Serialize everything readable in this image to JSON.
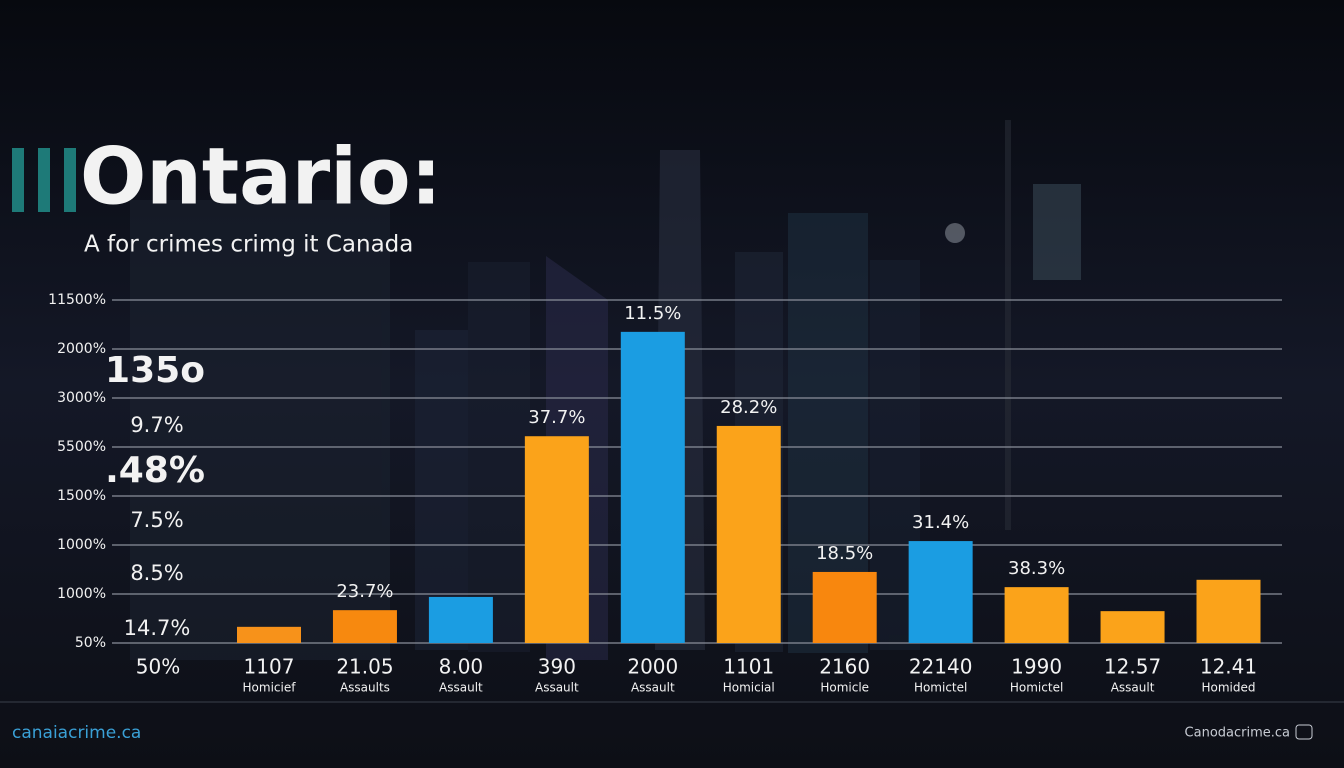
{
  "chart_data": {
    "type": "bar",
    "title": "Ontario:",
    "subtitle": "A for crimes crimg it Canada",
    "categories": [
      "1107",
      "21.05",
      "8.00",
      "390",
      "2000",
      "1101",
      "2160",
      "22140",
      "1990",
      "12.57",
      "12.41"
    ],
    "category_sublabels": [
      "Homicief",
      "Assaults",
      "Assault",
      "Assault",
      "Assault",
      "Homicial",
      "Homicle",
      "Homictel",
      "Homictel",
      "Assault",
      "Homided"
    ],
    "values": [
      0.33,
      0.67,
      0.94,
      4.22,
      6.35,
      4.43,
      1.45,
      2.08,
      1.14,
      0.65,
      1.29
    ],
    "colors": [
      "#f7921a",
      "#f7890f",
      "#1b9de2",
      "#fba31a",
      "#1b9de2",
      "#fba31a",
      "#f8870e",
      "#1b9de2",
      "#fba31a",
      "#fba31a",
      "#fba31a"
    ],
    "bar_labels": [
      null,
      "23.7%",
      null,
      "37.7%",
      "11.5%",
      "28.2%",
      "18.5%",
      "31.4%",
      "38.3%",
      null,
      null
    ],
    "ylim": [
      0,
      7
    ],
    "yticks": [
      {
        "value": 0,
        "label": "50%"
      },
      {
        "value": 1,
        "label": "1000%"
      },
      {
        "value": 2,
        "label": "1000%"
      },
      {
        "value": 3,
        "label": "1500%"
      },
      {
        "value": 4,
        "label": "5500%"
      },
      {
        "value": 5,
        "label": "3000%"
      },
      {
        "value": 6,
        "label": "2000%"
      },
      {
        "value": 7,
        "label": "11500%"
      }
    ],
    "grid": true,
    "corner_label": "50%",
    "side_stats": [
      "135o",
      "9.7%",
      ".48%",
      "7.5%",
      "8.5%",
      "14.7%"
    ],
    "footer_left": "canaiacrime.ca",
    "footer_right": "Canodacrime.ca"
  }
}
